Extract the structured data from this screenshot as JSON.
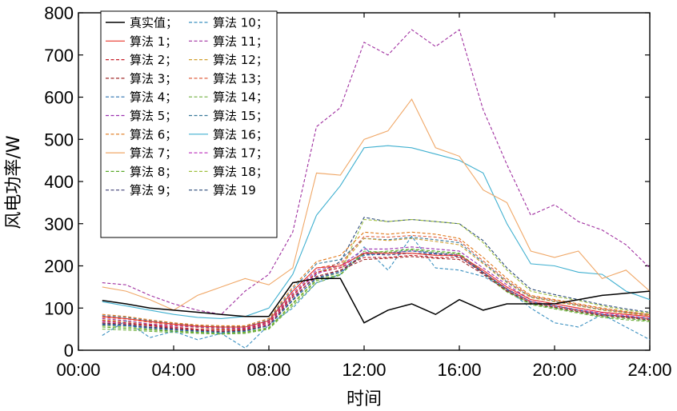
{
  "chart_data": {
    "type": "line",
    "xlabel": "时间",
    "ylabel": "风电功率/W",
    "x_ticks": [
      "00:00",
      "04:00",
      "08:00",
      "12:00",
      "16:00",
      "20:00",
      "24:00"
    ],
    "y_ticks": [
      "0",
      "100",
      "200",
      "300",
      "400",
      "500",
      "600",
      "700",
      "800"
    ],
    "xlim": [
      0,
      24
    ],
    "ylim": [
      0,
      800
    ],
    "grid": false,
    "legend_position": "top-left",
    "x": [
      1,
      2,
      3,
      4,
      5,
      6,
      7,
      8,
      9,
      10,
      11,
      12,
      13,
      14,
      15,
      16,
      17,
      18,
      19,
      20,
      21,
      22,
      23,
      24
    ],
    "series": [
      {
        "name": "真实值；",
        "color": "#000000",
        "dash": "solid",
        "values": [
          118,
          110,
          100,
          95,
          90,
          85,
          80,
          80,
          160,
          170,
          170,
          65,
          95,
          110,
          85,
          120,
          95,
          110,
          110,
          110,
          120,
          130,
          135,
          140
        ]
      },
      {
        "name": "算法 1；",
        "color": "#e8352a",
        "dash": "solid",
        "values": [
          80,
          75,
          68,
          62,
          57,
          55,
          55,
          70,
          140,
          195,
          200,
          230,
          230,
          230,
          225,
          225,
          190,
          150,
          120,
          110,
          100,
          90,
          85,
          80
        ]
      },
      {
        "name": "算法 2；",
        "color": "#c8202a",
        "dash": "dashed",
        "values": [
          70,
          65,
          60,
          55,
          50,
          48,
          50,
          65,
          130,
          185,
          195,
          220,
          220,
          225,
          220,
          220,
          185,
          145,
          115,
          105,
          95,
          85,
          80,
          75
        ]
      },
      {
        "name": "算法 3；",
        "color": "#a02828",
        "dash": "dashed",
        "values": [
          65,
          62,
          58,
          52,
          48,
          45,
          48,
          60,
          125,
          175,
          190,
          215,
          218,
          222,
          218,
          215,
          180,
          140,
          112,
          102,
          92,
          82,
          78,
          72
        ]
      },
      {
        "name": "算法 4；",
        "color": "#2a70b0",
        "dash": "dashed",
        "values": [
          60,
          58,
          52,
          48,
          45,
          42,
          45,
          58,
          120,
          170,
          185,
          225,
          230,
          235,
          230,
          225,
          185,
          145,
          115,
          105,
          95,
          85,
          80,
          75
        ]
      },
      {
        "name": "算法 5；",
        "color": "#9b30b0",
        "dash": "dashed",
        "values": [
          75,
          70,
          62,
          58,
          55,
          52,
          52,
          68,
          135,
          190,
          200,
          240,
          240,
          245,
          240,
          235,
          195,
          155,
          120,
          110,
          100,
          90,
          85,
          80
        ]
      },
      {
        "name": "算法 6；",
        "color": "#e07818",
        "dash": "dashed",
        "values": [
          85,
          80,
          72,
          65,
          60,
          58,
          58,
          75,
          150,
          210,
          225,
          280,
          275,
          280,
          275,
          265,
          220,
          170,
          130,
          120,
          110,
          100,
          92,
          85
        ]
      },
      {
        "name": "算法 7；",
        "color": "#f0a868",
        "dash": "solid",
        "values": [
          150,
          140,
          120,
          95,
          130,
          150,
          170,
          155,
          195,
          420,
          415,
          500,
          520,
          595,
          480,
          460,
          380,
          350,
          235,
          220,
          235,
          170,
          190,
          140
        ]
      },
      {
        "name": "算法 8；",
        "color": "#5aa82a",
        "dash": "dashed",
        "values": [
          55,
          52,
          48,
          45,
          42,
          40,
          42,
          52,
          110,
          165,
          180,
          230,
          235,
          240,
          235,
          230,
          185,
          140,
          110,
          100,
          90,
          80,
          75,
          70
        ]
      },
      {
        "name": "算法 9；",
        "color": "#404078",
        "dash": "dashed",
        "values": [
          62,
          58,
          54,
          50,
          46,
          44,
          46,
          58,
          118,
          172,
          188,
          228,
          226,
          230,
          228,
          222,
          182,
          142,
          112,
          102,
          92,
          84,
          78,
          72
        ]
      },
      {
        "name": "算法 10；",
        "color": "#3a90c0",
        "dash": "dashed",
        "values": [
          35,
          70,
          30,
          45,
          25,
          40,
          5,
          60,
          100,
          160,
          180,
          245,
          190,
          270,
          195,
          190,
          175,
          145,
          100,
          65,
          55,
          85,
          55,
          25
        ]
      },
      {
        "name": "算法 11；",
        "color": "#a030a0",
        "dash": "dashed",
        "values": [
          160,
          155,
          130,
          110,
          95,
          85,
          140,
          180,
          280,
          530,
          575,
          730,
          700,
          760,
          720,
          760,
          570,
          440,
          320,
          345,
          305,
          285,
          250,
          195
        ]
      },
      {
        "name": "算法 12；",
        "color": "#d0a030",
        "dash": "dashed",
        "values": [
          72,
          68,
          62,
          58,
          54,
          50,
          52,
          66,
          132,
          185,
          200,
          265,
          260,
          265,
          258,
          250,
          205,
          160,
          125,
          115,
          105,
          95,
          88,
          82
        ]
      },
      {
        "name": "算法 13；",
        "color": "#e06040",
        "dash": "dashed",
        "values": [
          78,
          74,
          66,
          60,
          56,
          54,
          54,
          70,
          140,
          195,
          205,
          270,
          268,
          272,
          268,
          260,
          212,
          165,
          128,
          118,
          108,
          98,
          90,
          84
        ]
      },
      {
        "name": "算法 14；",
        "color": "#70b040",
        "dash": "dashed",
        "values": [
          50,
          48,
          45,
          42,
          40,
          38,
          40,
          50,
          105,
          160,
          178,
          235,
          232,
          238,
          232,
          228,
          182,
          138,
          108,
          98,
          88,
          78,
          72,
          68
        ]
      },
      {
        "name": "算法 15；",
        "color": "#3a7a9a",
        "dash": "dashed",
        "values": [
          82,
          78,
          70,
          64,
          58,
          56,
          56,
          72,
          145,
          205,
          215,
          265,
          262,
          268,
          262,
          255,
          208,
          162,
          126,
          116,
          106,
          96,
          90,
          84
        ]
      },
      {
        "name": "算法 16；",
        "color": "#40b0d0",
        "dash": "solid",
        "values": [
          115,
          105,
          95,
          85,
          78,
          75,
          80,
          100,
          180,
          320,
          390,
          480,
          485,
          480,
          465,
          450,
          420,
          300,
          205,
          200,
          185,
          180,
          140,
          120
        ]
      },
      {
        "name": "算法 17；",
        "color": "#c040c0",
        "dash": "dashed",
        "values": [
          68,
          64,
          58,
          54,
          50,
          48,
          50,
          62,
          128,
          182,
          196,
          232,
          230,
          236,
          230,
          226,
          186,
          146,
          116,
          106,
          96,
          88,
          82,
          76
        ]
      },
      {
        "name": "算法 18；",
        "color": "#a0c040",
        "dash": "dashed",
        "values": [
          58,
          55,
          50,
          46,
          43,
          41,
          43,
          54,
          112,
          168,
          184,
          310,
          305,
          310,
          305,
          300,
          255,
          190,
          140,
          128,
          118,
          105,
          95,
          88
        ]
      },
      {
        "name": "算法 19",
        "color": "#2a4a7a",
        "dash": "dashed",
        "values": [
          64,
          60,
          55,
          51,
          47,
          45,
          47,
          59,
          120,
          180,
          210,
          315,
          305,
          310,
          305,
          300,
          260,
          195,
          145,
          132,
          120,
          108,
          98,
          90
        ]
      }
    ]
  }
}
